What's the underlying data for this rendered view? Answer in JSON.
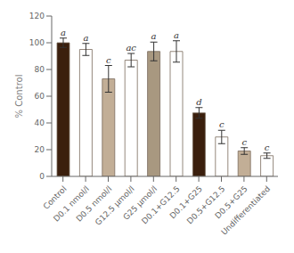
{
  "chart_data": {
    "type": "bar",
    "ylabel": "% Control",
    "categories": [
      "Control",
      "D0.1 nmol/l",
      "D0.5 nmol/l",
      "G12.5 μmol/l",
      "G25 μmol/l",
      "D0.1+G12.5",
      "D0.1+G25",
      "D0.5+G12.5",
      "D0.5+G25",
      "Undifferentiated"
    ],
    "values": [
      100,
      95,
      73,
      87,
      93.5,
      93.5,
      47.5,
      29.5,
      19,
      15.5
    ],
    "errors": [
      3.5,
      4.5,
      10,
      5,
      7,
      8,
      4,
      5,
      2.5,
      2
    ],
    "annotations": [
      "a",
      "a",
      "c",
      "ac",
      "a",
      "a",
      "d",
      "c",
      "c",
      "c"
    ],
    "colors": [
      "#3b1f0d",
      "#ffffff",
      "#c2ae96",
      "#ffffff",
      "#a89880",
      "#ffffff",
      "#3b1f0d",
      "#ffffff",
      "#c2ae96",
      "#ffffff"
    ],
    "ylim": [
      0,
      120
    ],
    "yticks": [
      0,
      20,
      40,
      60,
      80,
      100,
      120
    ],
    "grid": false
  }
}
